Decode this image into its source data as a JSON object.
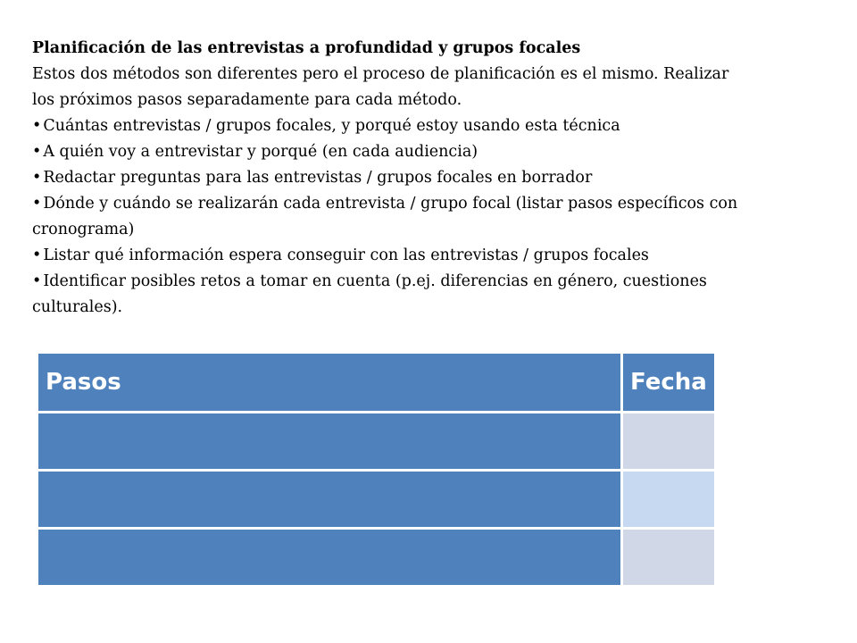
{
  "document": {
    "title": "Planificación de las entrevistas a profundidad y grupos focales",
    "intro": "Estos dos métodos son diferentes pero el proceso de planificación es el mismo. Realizar los próximos pasos separadamente para cada método.",
    "bullets": [
      "Cuántas entrevistas / grupos focales, y porqué estoy usando esta técnica",
      "A quién voy a entrevistar y porqué (en cada audiencia)",
      "Redactar preguntas para las entrevistas / grupos focales en borrador",
      "Dónde y cuándo se realizarán cada entrevista / grupo focal (listar pasos específicos con cronograma)",
      "Listar qué información espera conseguir con las entrevistas / grupos focales",
      "Identificar posibles retos a tomar en cuenta (p.ej. diferencias en género, cuestiones culturales)."
    ]
  },
  "table": {
    "headers": [
      "Pasos",
      "Fecha"
    ],
    "rows": [
      [
        "",
        ""
      ],
      [
        "",
        ""
      ],
      [
        "",
        ""
      ]
    ]
  },
  "colors": {
    "header_bg": "#4f81bd",
    "step_cell_bg": "#4f81bd",
    "date_cell_bg_a": "#d0d8e8",
    "date_cell_bg_b": "#c6d9f1"
  }
}
